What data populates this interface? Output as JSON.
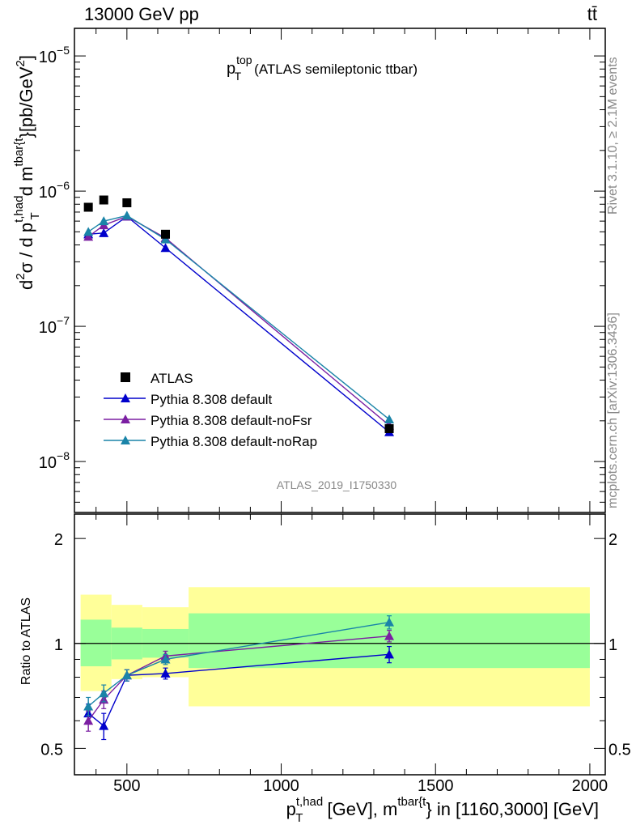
{
  "header": {
    "left": "13000 GeV pp",
    "right": "tt̄"
  },
  "side_labels": {
    "rivet": "Rivet 3.1.10, ≥ 2.1M events",
    "mcplots": "mcplots.cern.ch [arXiv:1306.3436]"
  },
  "analysis_id": "ATLAS_2019_I1750330",
  "chart_data": [
    {
      "type": "line",
      "title": {
        "p": "p",
        "sup": "top",
        "sub": "T",
        "rest": "(ATLAS semileptonic ttbar)"
      },
      "ylabel": {
        "d2": "d",
        "sup2": "2",
        "sigma": "σ / d p",
        "supthad": "t,had",
        "subT": "T",
        "dm": " d m",
        "suptbar": "tbar{t",
        "unit": "}[pb/GeV",
        "unit_sup": "2",
        "unit_end": "]"
      },
      "yscale": "log",
      "ylim": [
        4.2e-09,
        1.6e-05
      ],
      "xlim": [
        330,
        2050
      ],
      "yticks": [
        {
          "value": 1e-08,
          "base": "10",
          "exp": "−8"
        },
        {
          "value": 1e-07,
          "base": "10",
          "exp": "−7"
        },
        {
          "value": 1e-06,
          "base": "10",
          "exp": "−6"
        },
        {
          "value": 1e-05,
          "base": "10",
          "exp": "−5"
        }
      ],
      "legend_position": "bottom-left",
      "data_series": {
        "name": "ATLAS",
        "color": "#000000",
        "x": [
          375,
          425,
          500,
          625,
          1350
        ],
        "y": [
          7.6e-07,
          8.6e-07,
          8.2e-07,
          4.8e-07,
          1.75e-08
        ]
      },
      "series": [
        {
          "name": "Pythia 8.308 default",
          "color": "#0000cc",
          "x": [
            375,
            425,
            500,
            625,
            1350
          ],
          "y": [
            4.8e-07,
            4.9e-07,
            6.5e-07,
            3.8e-07,
            1.65e-08
          ]
        },
        {
          "name": "Pythia 8.308 default-noFsr",
          "color": "#7b1fa2",
          "x": [
            375,
            425,
            500,
            625,
            1350
          ],
          "y": [
            4.6e-07,
            5.6e-07,
            6.5e-07,
            4.5e-07,
            1.85e-08
          ]
        },
        {
          "name": "Pythia 8.308 default-noRap",
          "color": "#1a84a8",
          "x": [
            375,
            425,
            500,
            625,
            1350
          ],
          "y": [
            5e-07,
            6e-07,
            6.6e-07,
            4.4e-07,
            2.05e-08
          ]
        }
      ]
    },
    {
      "type": "line",
      "ylabel": "Ratio to ATLAS",
      "xlabel": {
        "p": "p",
        "sup1": "t,had",
        "sub1": "T",
        "mid": " [GeV], m",
        "sup2": "tbar{t",
        "end": "} in [1160,3000] [GeV]"
      },
      "yscale": "log",
      "ylim": [
        0.42,
        2.35
      ],
      "xlim": [
        330,
        2050
      ],
      "xticks": [
        500,
        1000,
        1500,
        2000
      ],
      "yticks": [
        0.5,
        1,
        2
      ],
      "bands": [
        {
          "x0": 350,
          "x1": 450,
          "yellow": [
            0.73,
            1.38
          ],
          "green": [
            0.86,
            1.17
          ]
        },
        {
          "x0": 450,
          "x1": 550,
          "yellow": [
            0.79,
            1.29
          ],
          "green": [
            0.9,
            1.11
          ]
        },
        {
          "x0": 550,
          "x1": 700,
          "yellow": [
            0.8,
            1.27
          ],
          "green": [
            0.91,
            1.1
          ]
        },
        {
          "x0": 700,
          "x1": 2000,
          "yellow": [
            0.66,
            1.45
          ],
          "green": [
            0.85,
            1.22
          ]
        }
      ],
      "series": [
        {
          "name": "Pythia 8.308 default",
          "color": "#0000cc",
          "x": [
            375,
            425,
            500,
            625,
            1350
          ],
          "y": [
            0.63,
            0.58,
            0.81,
            0.82,
            0.93
          ],
          "err": [
            0.04,
            0.05,
            0.03,
            0.03,
            0.05
          ]
        },
        {
          "name": "Pythia 8.308 default-noFsr",
          "color": "#7b1fa2",
          "x": [
            375,
            425,
            500,
            625,
            1350
          ],
          "y": [
            0.6,
            0.69,
            0.81,
            0.92,
            1.05
          ],
          "err": [
            0.04,
            0.04,
            0.03,
            0.03,
            0.04
          ]
        },
        {
          "name": "Pythia 8.308 default-noRap",
          "color": "#1a84a8",
          "x": [
            375,
            425,
            500,
            625,
            1350
          ],
          "y": [
            0.66,
            0.72,
            0.81,
            0.9,
            1.15
          ],
          "err": [
            0.04,
            0.04,
            0.03,
            0.03,
            0.05
          ]
        }
      ]
    }
  ]
}
